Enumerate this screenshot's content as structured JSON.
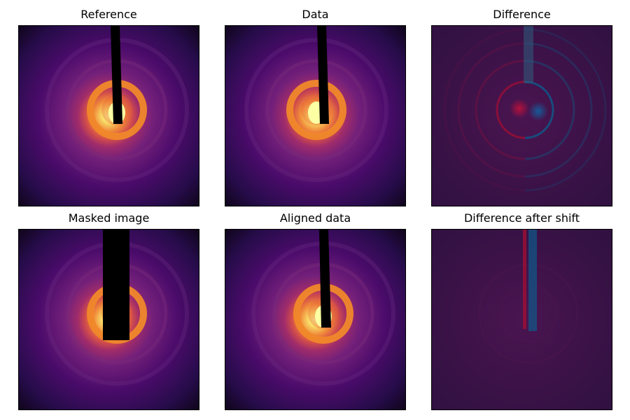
{
  "figure": {
    "panels": [
      {
        "id": "reference",
        "title": "Reference"
      },
      {
        "id": "data",
        "title": "Data"
      },
      {
        "id": "difference",
        "title": "Difference"
      },
      {
        "id": "masked",
        "title": "Masked image"
      },
      {
        "id": "aligned",
        "title": "Aligned data"
      },
      {
        "id": "difference_after_shift",
        "title": "Difference after shift"
      }
    ],
    "colors": {
      "inferno_dark": "#0d0415",
      "inferno_purple": "#4a0b6a",
      "inferno_orange": "#f37a1f",
      "inferno_bright": "#fcffa4",
      "beamstop": "#000000",
      "diff_red": "#8a0a2c",
      "diff_blue": "#0b4a78",
      "diff_background": "#3a1242"
    }
  }
}
